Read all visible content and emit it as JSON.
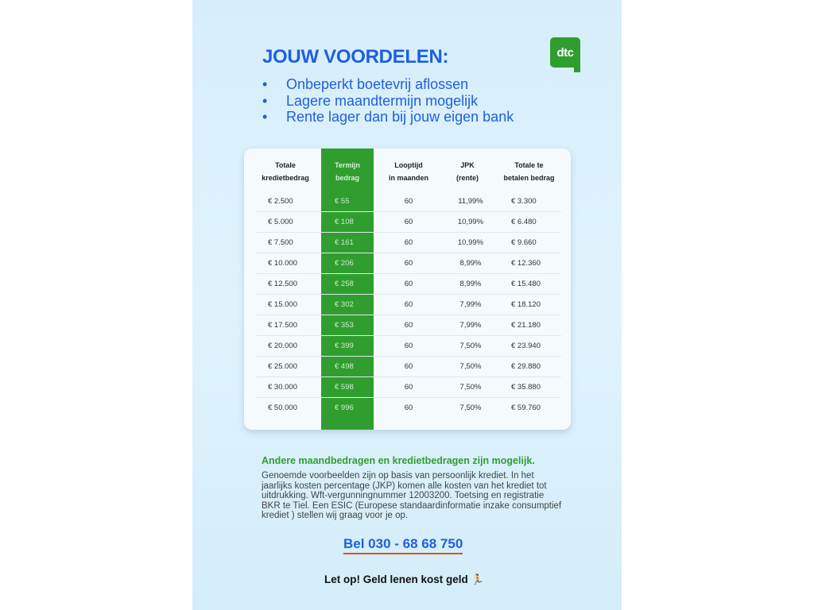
{
  "header": {
    "title": "JOUW VOORDELEN:",
    "logo_text": "dtc",
    "bullets": [
      "Onbeperkt boetevrij aflossen",
      "Lagere maandtermijn mogelijk",
      "Rente lager dan bij jouw eigen bank"
    ]
  },
  "table": {
    "columns": [
      [
        "Totale",
        "kredietbedrag"
      ],
      [
        "Termijn",
        "bedrag"
      ],
      [
        "Looptijd",
        "in maanden"
      ],
      [
        "JPK",
        "(rente)"
      ],
      [
        "Totale te",
        "betalen bedrag"
      ]
    ],
    "rows": [
      [
        "€ 2.500",
        "€ 55",
        "60",
        "11,99%",
        "€ 3.300"
      ],
      [
        "€ 5.000",
        "€ 108",
        "60",
        "10,99%",
        "€ 6.480"
      ],
      [
        "€ 7.500",
        "€ 161",
        "60",
        "10,99%",
        "€ 9.660"
      ],
      [
        "€ 10.000",
        "€ 206",
        "60",
        "8,99%",
        "€ 12.360"
      ],
      [
        "€ 12.500",
        "€ 258",
        "60",
        "8,99%",
        "€ 15.480"
      ],
      [
        "€ 15.000",
        "€ 302",
        "60",
        "7,99%",
        "€ 18.120"
      ],
      [
        "€ 17.500",
        "€ 353",
        "60",
        "7,99%",
        "€ 21.180"
      ],
      [
        "€ 20.000",
        "€ 399",
        "60",
        "7,50%",
        "€ 23.940"
      ],
      [
        "€ 25.000",
        "€ 498",
        "60",
        "7,50%",
        "€ 29.880"
      ],
      [
        "€ 30.000",
        "€ 598",
        "60",
        "7,50%",
        "€ 35.880"
      ],
      [
        "€ 50.000",
        "€ 996",
        "60",
        "7,50%",
        "€ 59.760"
      ]
    ]
  },
  "footer": {
    "note": "Andere maandbedragen en kredietbedragen zijn mogelijk.",
    "disclaimer": "Genoemde voorbeelden zijn op basis van persoonlijk krediet. In het jaarlijks kosten percentage (JKP) komen alle kosten van het krediet tot uitdrukking. Wft-vergunningnummer 12003200. Toetsing en registratie BKR te Tiel. Een ESIC (Europese standaardinformatie inzake consumptief krediet ) stellen wij graag voor je op.",
    "phone": "Bel 030 - 68 68 750",
    "warning": "Let op! Geld lenen kost geld",
    "warning_icon": "running-man-icon"
  },
  "colors": {
    "blue": "#1f5fe0",
    "green": "#2f9e2f",
    "underline": "#e0521a"
  }
}
